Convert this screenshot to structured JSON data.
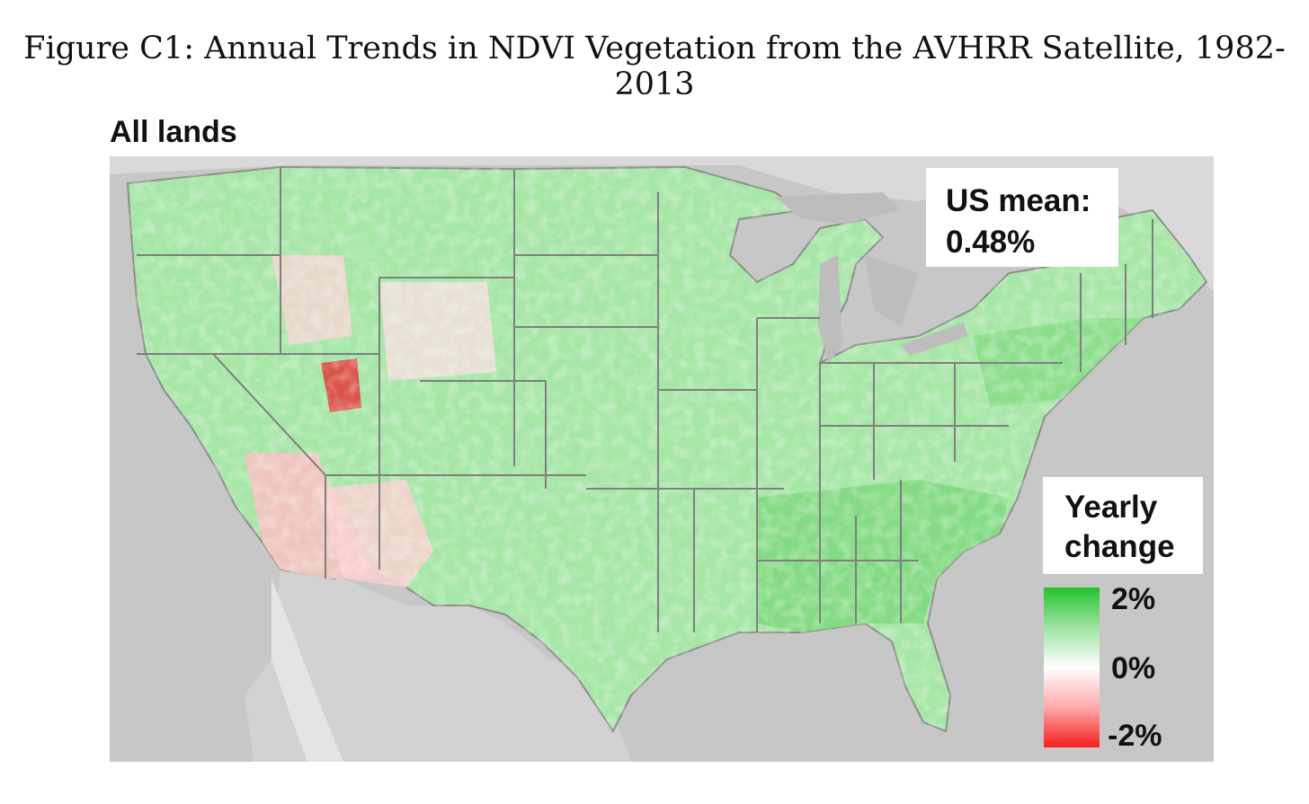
{
  "figure": {
    "caption": "Figure C1: Annual Trends in NDVI Vegetation from the AVHRR Satellite, 1982-2013",
    "panel_title": "All lands"
  },
  "summary": {
    "label": "US mean:",
    "value": "0.48%"
  },
  "legend": {
    "title_line1": "Yearly",
    "title_line2": "change",
    "ticks": [
      "2%",
      "0%",
      "-2%"
    ],
    "colors": {
      "high": "#1fc42c",
      "mid": "#ffffff",
      "low": "#f51e1e"
    },
    "range": [
      -2,
      2
    ],
    "unit": "%"
  },
  "map_colors": {
    "background": "#c7c7c7",
    "land_outside": "#d9d9d9",
    "water": "#bdbdbd",
    "vegetation_gain": "#9fe3a3",
    "vegetation_loss": "#f6b3b3",
    "state_border": "#7f7f7f"
  }
}
